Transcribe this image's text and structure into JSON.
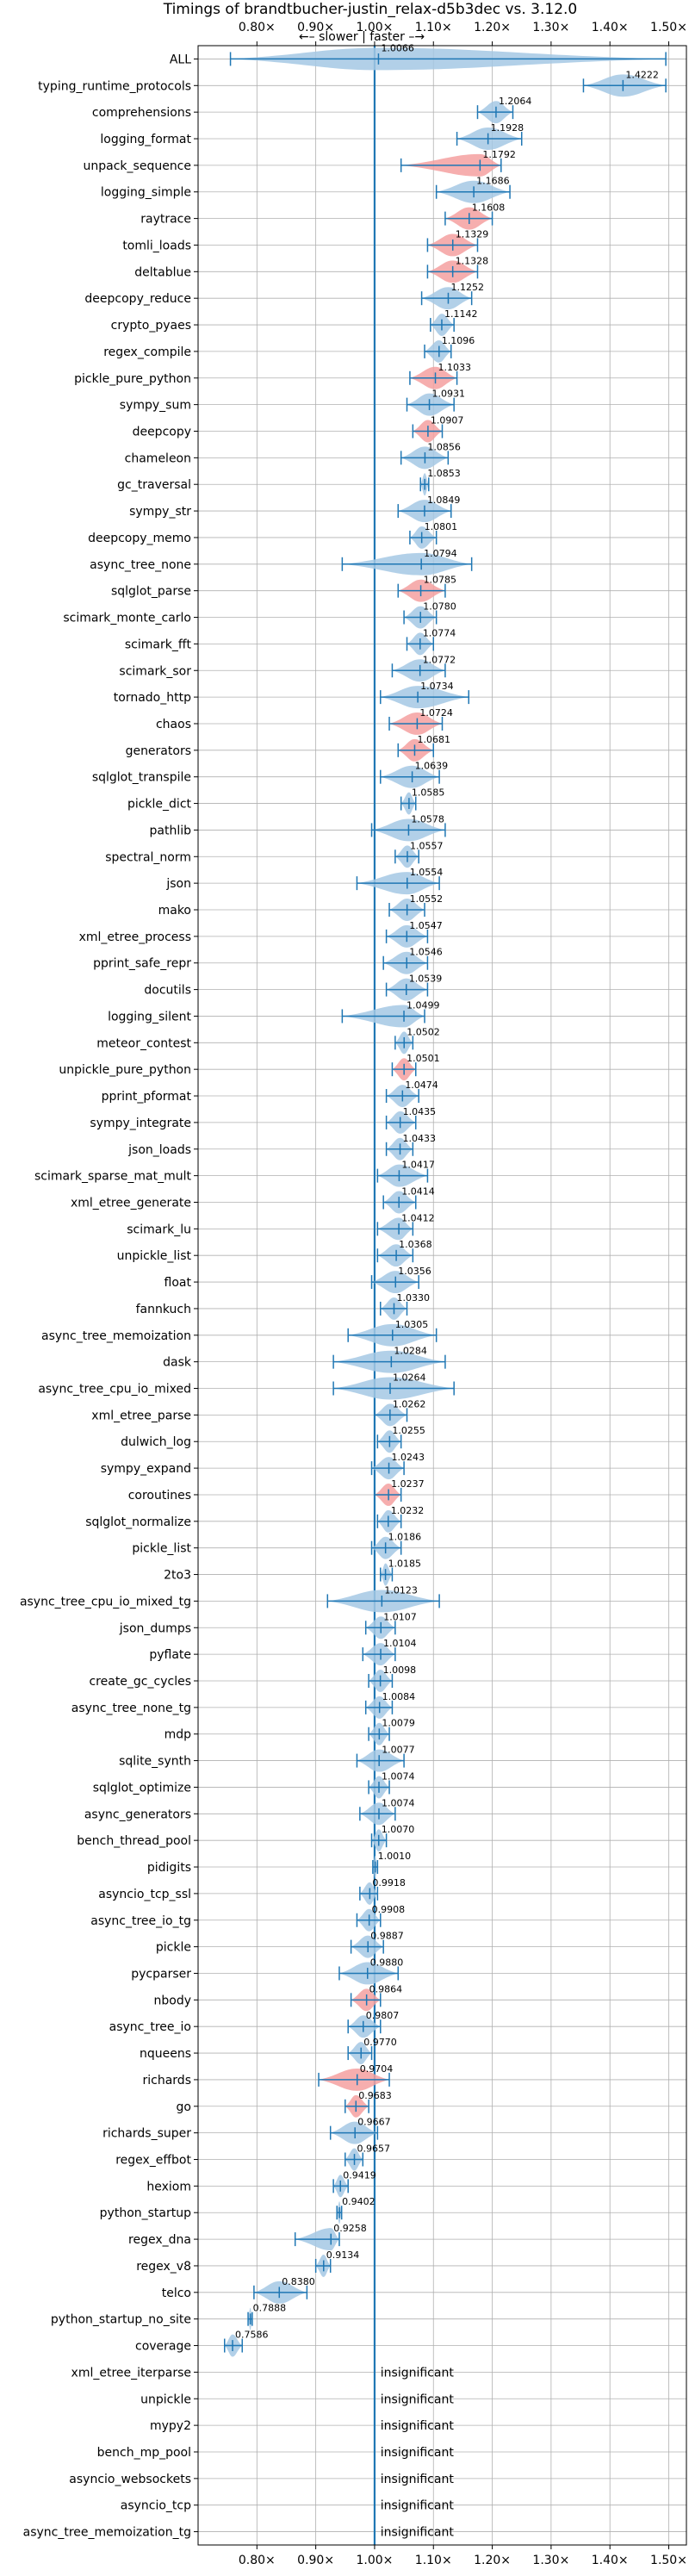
{
  "chart_data": {
    "type": "violin",
    "title": "Timings of brandtbucher-justin_relax-d5b3dec vs. 3.12.0",
    "xlim": [
      0.7,
      1.53
    ],
    "xticks": [
      0.8,
      0.9,
      1.0,
      1.1,
      1.2,
      1.3,
      1.4,
      1.5
    ],
    "xtick_labels": [
      "0.80×",
      "0.90×",
      "1.00×",
      "1.10×",
      "1.20×",
      "1.30×",
      "1.40×",
      "1.50×"
    ],
    "direction_label": "←– slower | faster –→",
    "grid": true,
    "reference_line": 1.0,
    "colors": {
      "faster": "#a4c8e4",
      "slower": "#f4a0a0",
      "marker": "#1f77b4"
    },
    "insignificant_label": "insignificant",
    "benchmarks": [
      {
        "name": "ALL",
        "value": 1.0066,
        "label": "1.0066",
        "low": 0.755,
        "high": 1.495,
        "color": "blue"
      },
      {
        "name": "typing_runtime_protocols",
        "value": 1.4222,
        "label": "1.4222",
        "low": 1.355,
        "high": 1.495,
        "color": "blue"
      },
      {
        "name": "comprehensions",
        "value": 1.2064,
        "label": "1.2064",
        "low": 1.175,
        "high": 1.235,
        "color": "blue"
      },
      {
        "name": "logging_format",
        "value": 1.1928,
        "label": "1.1928",
        "low": 1.14,
        "high": 1.25,
        "color": "blue"
      },
      {
        "name": "unpack_sequence",
        "value": 1.1792,
        "label": "1.1792",
        "low": 1.045,
        "high": 1.215,
        "color": "red"
      },
      {
        "name": "logging_simple",
        "value": 1.1686,
        "label": "1.1686",
        "low": 1.105,
        "high": 1.23,
        "color": "blue"
      },
      {
        "name": "raytrace",
        "value": 1.1608,
        "label": "1.1608",
        "low": 1.12,
        "high": 1.2,
        "color": "red"
      },
      {
        "name": "tomli_loads",
        "value": 1.1329,
        "label": "1.1329",
        "low": 1.09,
        "high": 1.175,
        "color": "red"
      },
      {
        "name": "deltablue",
        "value": 1.1328,
        "label": "1.1328",
        "low": 1.09,
        "high": 1.175,
        "color": "red"
      },
      {
        "name": "deepcopy_reduce",
        "value": 1.1252,
        "label": "1.1252",
        "low": 1.08,
        "high": 1.165,
        "color": "blue"
      },
      {
        "name": "crypto_pyaes",
        "value": 1.1142,
        "label": "1.1142",
        "low": 1.095,
        "high": 1.135,
        "color": "blue"
      },
      {
        "name": "regex_compile",
        "value": 1.1096,
        "label": "1.1096",
        "low": 1.085,
        "high": 1.13,
        "color": "blue"
      },
      {
        "name": "pickle_pure_python",
        "value": 1.1033,
        "label": "1.1033",
        "low": 1.06,
        "high": 1.14,
        "color": "red"
      },
      {
        "name": "sympy_sum",
        "value": 1.0931,
        "label": "1.0931",
        "low": 1.055,
        "high": 1.135,
        "color": "blue"
      },
      {
        "name": "deepcopy",
        "value": 1.0907,
        "label": "1.0907",
        "low": 1.065,
        "high": 1.115,
        "color": "red"
      },
      {
        "name": "chameleon",
        "value": 1.0856,
        "label": "1.0856",
        "low": 1.045,
        "high": 1.125,
        "color": "blue"
      },
      {
        "name": "gc_traversal",
        "value": 1.0853,
        "label": "1.0853",
        "low": 1.078,
        "high": 1.092,
        "color": "blue"
      },
      {
        "name": "sympy_str",
        "value": 1.0849,
        "label": "1.0849",
        "low": 1.04,
        "high": 1.13,
        "color": "blue"
      },
      {
        "name": "deepcopy_memo",
        "value": 1.0801,
        "label": "1.0801",
        "low": 1.06,
        "high": 1.105,
        "color": "blue"
      },
      {
        "name": "async_tree_none",
        "value": 1.0794,
        "label": "1.0794",
        "low": 0.945,
        "high": 1.165,
        "color": "blue"
      },
      {
        "name": "sqlglot_parse",
        "value": 1.0785,
        "label": "1.0785",
        "low": 1.04,
        "high": 1.12,
        "color": "red"
      },
      {
        "name": "scimark_monte_carlo",
        "value": 1.078,
        "label": "1.0780",
        "low": 1.05,
        "high": 1.105,
        "color": "blue"
      },
      {
        "name": "scimark_fft",
        "value": 1.0774,
        "label": "1.0774",
        "low": 1.055,
        "high": 1.1,
        "color": "blue"
      },
      {
        "name": "scimark_sor",
        "value": 1.0772,
        "label": "1.0772",
        "low": 1.03,
        "high": 1.12,
        "color": "blue"
      },
      {
        "name": "tornado_http",
        "value": 1.0734,
        "label": "1.0734",
        "low": 1.01,
        "high": 1.16,
        "color": "blue"
      },
      {
        "name": "chaos",
        "value": 1.0724,
        "label": "1.0724",
        "low": 1.025,
        "high": 1.115,
        "color": "red"
      },
      {
        "name": "generators",
        "value": 1.0681,
        "label": "1.0681",
        "low": 1.04,
        "high": 1.1,
        "color": "red"
      },
      {
        "name": "sqlglot_transpile",
        "value": 1.0639,
        "label": "1.0639",
        "low": 1.01,
        "high": 1.11,
        "color": "blue"
      },
      {
        "name": "pickle_dict",
        "value": 1.0585,
        "label": "1.0585",
        "low": 1.045,
        "high": 1.07,
        "color": "blue"
      },
      {
        "name": "pathlib",
        "value": 1.0578,
        "label": "1.0578",
        "low": 0.995,
        "high": 1.12,
        "color": "blue"
      },
      {
        "name": "spectral_norm",
        "value": 1.0557,
        "label": "1.0557",
        "low": 1.035,
        "high": 1.075,
        "color": "blue"
      },
      {
        "name": "json",
        "value": 1.0554,
        "label": "1.0554",
        "low": 0.97,
        "high": 1.11,
        "color": "blue"
      },
      {
        "name": "mako",
        "value": 1.0552,
        "label": "1.0552",
        "low": 1.025,
        "high": 1.085,
        "color": "blue"
      },
      {
        "name": "xml_etree_process",
        "value": 1.0547,
        "label": "1.0547",
        "low": 1.02,
        "high": 1.09,
        "color": "blue"
      },
      {
        "name": "pprint_safe_repr",
        "value": 1.0546,
        "label": "1.0546",
        "low": 1.015,
        "high": 1.09,
        "color": "blue"
      },
      {
        "name": "docutils",
        "value": 1.0539,
        "label": "1.0539",
        "low": 1.02,
        "high": 1.09,
        "color": "blue"
      },
      {
        "name": "logging_silent",
        "value": 1.0499,
        "label": "1.0499",
        "low": 0.945,
        "high": 1.085,
        "color": "blue"
      },
      {
        "name": "meteor_contest",
        "value": 1.0502,
        "label": "1.0502",
        "low": 1.035,
        "high": 1.065,
        "color": "blue"
      },
      {
        "name": "unpickle_pure_python",
        "value": 1.0501,
        "label": "1.0501",
        "low": 1.03,
        "high": 1.07,
        "color": "red"
      },
      {
        "name": "pprint_pformat",
        "value": 1.0474,
        "label": "1.0474",
        "low": 1.02,
        "high": 1.075,
        "color": "blue"
      },
      {
        "name": "sympy_integrate",
        "value": 1.0435,
        "label": "1.0435",
        "low": 1.02,
        "high": 1.07,
        "color": "blue"
      },
      {
        "name": "json_loads",
        "value": 1.0433,
        "label": "1.0433",
        "low": 1.02,
        "high": 1.065,
        "color": "blue"
      },
      {
        "name": "scimark_sparse_mat_mult",
        "value": 1.0417,
        "label": "1.0417",
        "low": 1.005,
        "high": 1.09,
        "color": "blue"
      },
      {
        "name": "xml_etree_generate",
        "value": 1.0414,
        "label": "1.0414",
        "low": 1.015,
        "high": 1.07,
        "color": "blue"
      },
      {
        "name": "scimark_lu",
        "value": 1.0412,
        "label": "1.0412",
        "low": 1.005,
        "high": 1.065,
        "color": "blue"
      },
      {
        "name": "unpickle_list",
        "value": 1.0368,
        "label": "1.0368",
        "low": 1.005,
        "high": 1.065,
        "color": "blue"
      },
      {
        "name": "float",
        "value": 1.0356,
        "label": "1.0356",
        "low": 0.995,
        "high": 1.075,
        "color": "blue"
      },
      {
        "name": "fannkuch",
        "value": 1.033,
        "label": "1.0330",
        "low": 1.01,
        "high": 1.055,
        "color": "blue"
      },
      {
        "name": "async_tree_memoization",
        "value": 1.0305,
        "label": "1.0305",
        "low": 0.955,
        "high": 1.105,
        "color": "blue"
      },
      {
        "name": "dask",
        "value": 1.0284,
        "label": "1.0284",
        "low": 0.93,
        "high": 1.12,
        "color": "blue"
      },
      {
        "name": "async_tree_cpu_io_mixed",
        "value": 1.0264,
        "label": "1.0264",
        "low": 0.93,
        "high": 1.135,
        "color": "blue"
      },
      {
        "name": "xml_etree_parse",
        "value": 1.0262,
        "label": "1.0262",
        "low": 1.0,
        "high": 1.055,
        "color": "blue"
      },
      {
        "name": "dulwich_log",
        "value": 1.0255,
        "label": "1.0255",
        "low": 1.005,
        "high": 1.045,
        "color": "blue"
      },
      {
        "name": "sympy_expand",
        "value": 1.0243,
        "label": "1.0243",
        "low": 0.995,
        "high": 1.05,
        "color": "blue"
      },
      {
        "name": "coroutines",
        "value": 1.0237,
        "label": "1.0237",
        "low": 1.0,
        "high": 1.045,
        "color": "red"
      },
      {
        "name": "sqlglot_normalize",
        "value": 1.0232,
        "label": "1.0232",
        "low": 1.005,
        "high": 1.045,
        "color": "blue"
      },
      {
        "name": "pickle_list",
        "value": 1.0186,
        "label": "1.0186",
        "low": 0.995,
        "high": 1.045,
        "color": "blue"
      },
      {
        "name": "2to3",
        "value": 1.0185,
        "label": "1.0185",
        "low": 1.01,
        "high": 1.03,
        "color": "blue"
      },
      {
        "name": "async_tree_cpu_io_mixed_tg",
        "value": 1.0123,
        "label": "1.0123",
        "low": 0.92,
        "high": 1.11,
        "color": "blue"
      },
      {
        "name": "json_dumps",
        "value": 1.0107,
        "label": "1.0107",
        "low": 0.985,
        "high": 1.035,
        "color": "blue"
      },
      {
        "name": "pyflate",
        "value": 1.0104,
        "label": "1.0104",
        "low": 0.98,
        "high": 1.035,
        "color": "blue"
      },
      {
        "name": "create_gc_cycles",
        "value": 1.0098,
        "label": "1.0098",
        "low": 0.99,
        "high": 1.03,
        "color": "blue"
      },
      {
        "name": "async_tree_none_tg",
        "value": 1.0084,
        "label": "1.0084",
        "low": 0.985,
        "high": 1.03,
        "color": "blue"
      },
      {
        "name": "mdp",
        "value": 1.0079,
        "label": "1.0079",
        "low": 0.99,
        "high": 1.025,
        "color": "blue"
      },
      {
        "name": "sqlite_synth",
        "value": 1.0077,
        "label": "1.0077",
        "low": 0.97,
        "high": 1.05,
        "color": "blue"
      },
      {
        "name": "sqlglot_optimize",
        "value": 1.0074,
        "label": "1.0074",
        "low": 0.99,
        "high": 1.025,
        "color": "blue"
      },
      {
        "name": "async_generators",
        "value": 1.0074,
        "label": "1.0074",
        "low": 0.975,
        "high": 1.035,
        "color": "blue"
      },
      {
        "name": "bench_thread_pool",
        "value": 1.007,
        "label": "1.0070",
        "low": 0.995,
        "high": 1.02,
        "color": "blue"
      },
      {
        "name": "pidigits",
        "value": 1.001,
        "label": "1.0010",
        "low": 0.997,
        "high": 1.005,
        "color": "blue"
      },
      {
        "name": "asyncio_tcp_ssl",
        "value": 0.9918,
        "label": "0.9918",
        "low": 0.975,
        "high": 1.005,
        "color": "blue"
      },
      {
        "name": "async_tree_io_tg",
        "value": 0.9908,
        "label": "0.9908",
        "low": 0.97,
        "high": 1.01,
        "color": "blue"
      },
      {
        "name": "pickle",
        "value": 0.9887,
        "label": "0.9887",
        "low": 0.96,
        "high": 1.015,
        "color": "blue"
      },
      {
        "name": "pycparser",
        "value": 0.988,
        "label": "0.9880",
        "low": 0.94,
        "high": 1.04,
        "color": "blue"
      },
      {
        "name": "nbody",
        "value": 0.9864,
        "label": "0.9864",
        "low": 0.96,
        "high": 1.01,
        "color": "red"
      },
      {
        "name": "async_tree_io",
        "value": 0.9807,
        "label": "0.9807",
        "low": 0.955,
        "high": 1.01,
        "color": "blue"
      },
      {
        "name": "nqueens",
        "value": 0.977,
        "label": "0.9770",
        "low": 0.955,
        "high": 0.995,
        "color": "blue"
      },
      {
        "name": "richards",
        "value": 0.9704,
        "label": "0.9704",
        "low": 0.905,
        "high": 1.025,
        "color": "red"
      },
      {
        "name": "go",
        "value": 0.9683,
        "label": "0.9683",
        "low": 0.95,
        "high": 0.99,
        "color": "red"
      },
      {
        "name": "richards_super",
        "value": 0.9667,
        "label": "0.9667",
        "low": 0.925,
        "high": 1.005,
        "color": "blue"
      },
      {
        "name": "regex_effbot",
        "value": 0.9657,
        "label": "0.9657",
        "low": 0.95,
        "high": 0.98,
        "color": "blue"
      },
      {
        "name": "hexiom",
        "value": 0.9419,
        "label": "0.9419",
        "low": 0.93,
        "high": 0.955,
        "color": "blue"
      },
      {
        "name": "python_startup",
        "value": 0.9402,
        "label": "0.9402",
        "low": 0.936,
        "high": 0.944,
        "color": "blue"
      },
      {
        "name": "regex_dna",
        "value": 0.9258,
        "label": "0.9258",
        "low": 0.865,
        "high": 0.94,
        "color": "blue"
      },
      {
        "name": "regex_v8",
        "value": 0.9134,
        "label": "0.9134",
        "low": 0.9,
        "high": 0.925,
        "color": "blue"
      },
      {
        "name": "telco",
        "value": 0.838,
        "label": "0.8380",
        "low": 0.795,
        "high": 0.885,
        "color": "blue"
      },
      {
        "name": "python_startup_no_site",
        "value": 0.7888,
        "label": "0.7888",
        "low": 0.785,
        "high": 0.792,
        "color": "blue"
      },
      {
        "name": "coverage",
        "value": 0.7586,
        "label": "0.7586",
        "low": 0.745,
        "high": 0.775,
        "color": "blue"
      },
      {
        "name": "xml_etree_iterparse",
        "insignificant": true
      },
      {
        "name": "unpickle",
        "insignificant": true
      },
      {
        "name": "mypy2",
        "insignificant": true
      },
      {
        "name": "bench_mp_pool",
        "insignificant": true
      },
      {
        "name": "asyncio_websockets",
        "insignificant": true
      },
      {
        "name": "asyncio_tcp",
        "insignificant": true
      },
      {
        "name": "async_tree_memoization_tg",
        "insignificant": true
      }
    ]
  }
}
